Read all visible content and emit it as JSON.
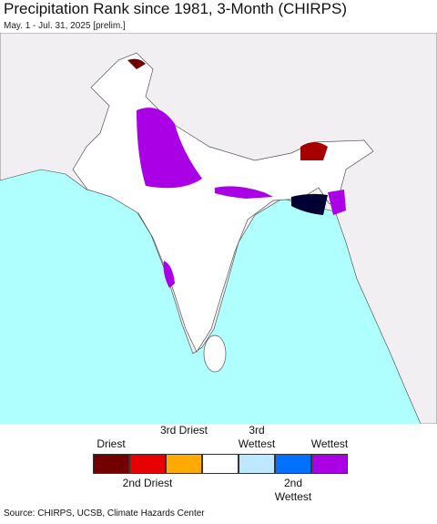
{
  "header": {
    "title": "Precipitation Rank since 1981, 3-Month (CHIRPS)",
    "subtitle": "May. 1 - Jul. 31, 2025 [prelim.]"
  },
  "legend": {
    "items": [
      {
        "color": "#730000",
        "label": "Driest"
      },
      {
        "color": "#e60000",
        "label": "2nd Driest"
      },
      {
        "color": "#ffaa00",
        "label": "3rd Driest"
      },
      {
        "color": "#ffffff"
      },
      {
        "color": "#bee8ff",
        "label": "3rd Wettest"
      },
      {
        "color": "#0070ff",
        "label": "2nd Wettest"
      },
      {
        "color": "#a900e6",
        "label": "Wettest"
      }
    ]
  },
  "footer": {
    "source": "Source: CHIRPS, UCSB, Climate Hazards Center"
  }
}
